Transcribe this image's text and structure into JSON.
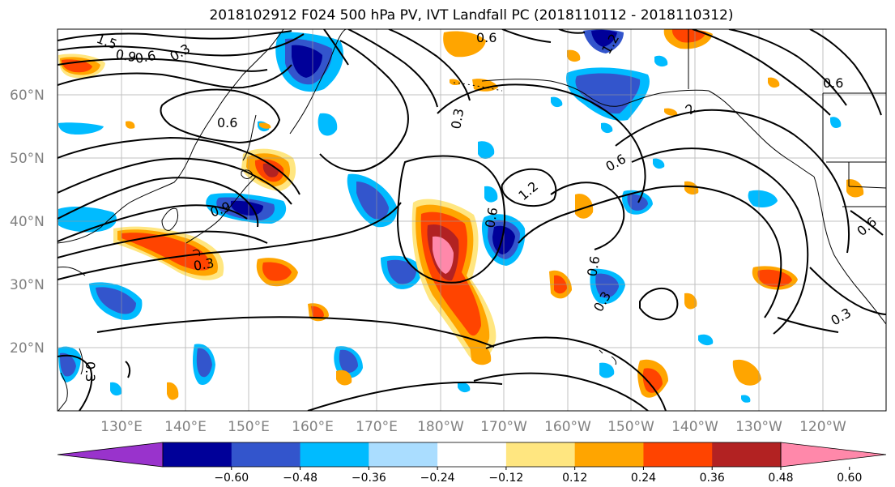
{
  "title": "2018102912 F024 500 hPa PV, IVT Landfall PC (2018110112 - 2018110312)",
  "lat_ticks": [
    "60°N",
    "50°N",
    "40°N",
    "30°N",
    "20°N"
  ],
  "lon_ticks": [
    "130°E",
    "140°E",
    "150°E",
    "160°E",
    "170°E",
    "180°W",
    "170°W",
    "160°W",
    "150°W",
    "140°W",
    "130°W",
    "120°W"
  ],
  "colorbar": {
    "levels": [
      "−0.60",
      "−0.48",
      "−0.36",
      "−0.24",
      "−0.12",
      "0.12",
      "0.24",
      "0.36",
      "0.48",
      "0.60"
    ],
    "colors": [
      "#9933cc",
      "#000099",
      "#3355cc",
      "#00bbff",
      "#aaddff",
      "#ffffff",
      "#ffe680",
      "#ffa500",
      "#ff4400",
      "#b22222",
      "#ff88aa"
    ]
  },
  "contour_labels": [
    "1.5",
    "0.9",
    "0.6",
    "0.3",
    "0.6",
    "0.6",
    "1.2",
    "0.6",
    "0.9",
    "0.3",
    "0.3",
    "1.2",
    "0.6",
    "0.6",
    "0.3",
    "0.6",
    "0.6",
    "0.3",
    "0.3",
    "2"
  ]
}
